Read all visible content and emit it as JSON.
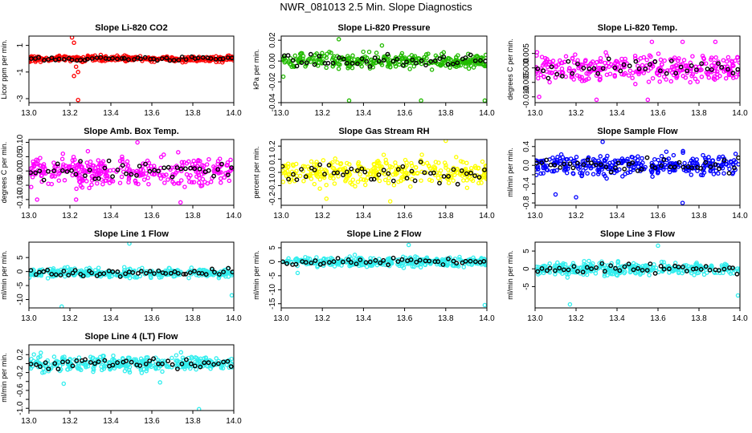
{
  "title": "NWR_081013  2.5 Min. Slope Diagnostics",
  "chart_data": [
    {
      "type": "scatter",
      "title": "Slope Li-820 CO2",
      "ylabel": "Licor ppm per min.",
      "xlim": [
        13.0,
        14.0
      ],
      "ylim": [
        -3.3,
        1.7
      ],
      "yticks": [
        -3,
        -1,
        1
      ],
      "ytick_labels": [
        "-3",
        "-1",
        "1"
      ],
      "xticks": [
        13.0,
        13.2,
        13.4,
        13.6,
        13.8,
        14.0
      ],
      "xtick_labels": [
        "13.0",
        "13.2",
        "13.4",
        "13.6",
        "13.8",
        "14.0"
      ],
      "color": "#ff0000",
      "reference_color": "#000000",
      "center": 0.0,
      "spread": 0.18,
      "outliers": [
        [
          13.21,
          1.6
        ],
        [
          13.22,
          1.2
        ],
        [
          13.23,
          -0.6
        ],
        [
          13.24,
          -1.0
        ],
        [
          13.22,
          -1.3
        ],
        [
          13.24,
          -3.1
        ]
      ],
      "n": 320,
      "n_ref": 50
    },
    {
      "type": "scatter",
      "title": "Slope Li-820 Pressure",
      "ylabel": "kPa per min.",
      "xlim": [
        13.0,
        14.0
      ],
      "ylim": [
        -0.04,
        0.024
      ],
      "yticks": [
        -0.04,
        -0.02,
        0.0,
        0.02
      ],
      "ytick_labels": [
        "-0.04",
        "-0.02",
        "0.00",
        "0.02"
      ],
      "xticks": [
        13.0,
        13.2,
        13.4,
        13.6,
        13.8,
        14.0
      ],
      "xtick_labels": [
        "13.0",
        "13.2",
        "13.4",
        "13.6",
        "13.8",
        "14.0"
      ],
      "color": "#22bb00",
      "reference_color": "#000000",
      "center": 0.0,
      "spread": 0.006,
      "outliers": [
        [
          13.01,
          -0.015
        ],
        [
          13.33,
          -0.038
        ],
        [
          13.49,
          0.015
        ],
        [
          13.68,
          -0.038
        ],
        [
          13.99,
          -0.038
        ],
        [
          13.28,
          0.021
        ]
      ],
      "n": 320,
      "n_ref": 45
    },
    {
      "type": "scatter",
      "title": "Slope Li-820 Temp.",
      "ylabel": "degrees C per min.",
      "xlim": [
        13.0,
        14.0
      ],
      "ylim": [
        -0.012,
        0.011
      ],
      "yticks": [
        -0.01,
        -0.005,
        0.0,
        0.005
      ],
      "ytick_labels": [
        "-0.010",
        "-0.005",
        "0.000",
        "0.005"
      ],
      "xticks": [
        13.0,
        13.2,
        13.4,
        13.6,
        13.8,
        14.0
      ],
      "xtick_labels": [
        "13.0",
        "13.2",
        "13.4",
        "13.6",
        "13.8",
        "14.0"
      ],
      "color": "#ff00ff",
      "reference_color": "#000000",
      "center": 0.0,
      "spread": 0.004,
      "outliers": [
        [
          13.57,
          0.009
        ],
        [
          13.72,
          0.009
        ],
        [
          13.88,
          0.009
        ],
        [
          13.3,
          -0.011
        ],
        [
          13.55,
          -0.011
        ],
        [
          13.02,
          -0.01
        ]
      ],
      "n": 320,
      "n_ref": 40
    },
    {
      "type": "scatter",
      "title": "Slope Amb. Box Temp.",
      "ylabel": "degrees C per min.",
      "xlim": [
        13.0,
        14.0
      ],
      "ylim": [
        -0.12,
        0.11
      ],
      "yticks": [
        -0.1,
        -0.05,
        0.0,
        0.05,
        0.1
      ],
      "ytick_labels": [
        "-0.10",
        "-0.05",
        "0.00",
        "0.05",
        "0.10"
      ],
      "xticks": [
        13.0,
        13.2,
        13.4,
        13.6,
        13.8,
        14.0
      ],
      "xtick_labels": [
        "13.0",
        "13.2",
        "13.4",
        "13.6",
        "13.8",
        "14.0"
      ],
      "color": "#ff00ff",
      "reference_color": "#000000",
      "center": 0.0,
      "spread": 0.04,
      "outliers": [
        [
          13.53,
          0.1
        ],
        [
          13.74,
          -0.11
        ],
        [
          13.04,
          -0.1
        ],
        [
          13.23,
          -0.1
        ]
      ],
      "n": 330,
      "n_ref": 45
    },
    {
      "type": "scatter",
      "title": "Slope Gas Stream RH",
      "ylabel": "percent per min.",
      "xlim": [
        13.0,
        14.0
      ],
      "ylim": [
        -0.25,
        0.25
      ],
      "yticks": [
        -0.2,
        -0.1,
        0.0,
        0.1,
        0.2
      ],
      "ytick_labels": [
        "-0.2",
        "-0.1",
        "0.0",
        "0.1",
        "0.2"
      ],
      "xticks": [
        13.0,
        13.2,
        13.4,
        13.6,
        13.8,
        14.0
      ],
      "xtick_labels": [
        "13.0",
        "13.2",
        "13.4",
        "13.6",
        "13.8",
        "14.0"
      ],
      "color": "#ffff00",
      "reference_color": "#000000",
      "center": 0.0,
      "spread": 0.08,
      "outliers": [
        [
          13.8,
          0.24
        ],
        [
          13.22,
          -0.2
        ],
        [
          13.53,
          -0.22
        ]
      ],
      "n": 330,
      "n_ref": 45
    },
    {
      "type": "scatter",
      "title": "Slope Sample Flow",
      "ylabel": "ml/min per min.",
      "xlim": [
        13.0,
        14.0
      ],
      "ylim": [
        -0.85,
        0.55
      ],
      "yticks": [
        -0.8,
        -0.6,
        -0.4,
        -0.2,
        0.0,
        0.2,
        0.4
      ],
      "ytick_labels": [
        "-0.8",
        "",
        "-0.4",
        "",
        "0.0",
        "",
        "0.4"
      ],
      "xticks": [
        13.0,
        13.2,
        13.4,
        13.6,
        13.8,
        14.0
      ],
      "xtick_labels": [
        "13.0",
        "13.2",
        "13.4",
        "13.6",
        "13.8",
        "14.0"
      ],
      "color": "#0000ff",
      "reference_color": "#000000",
      "center": 0.0,
      "spread": 0.18,
      "outliers": [
        [
          13.33,
          0.5
        ],
        [
          13.72,
          -0.8
        ],
        [
          13.1,
          -0.62
        ],
        [
          13.2,
          -0.68
        ]
      ],
      "n": 330,
      "n_ref": 45
    },
    {
      "type": "scatter",
      "title": "Slope Line 1 Flow",
      "ylabel": "ml/min per min.",
      "xlim": [
        13.0,
        14.0
      ],
      "ylim": [
        -13,
        10.5
      ],
      "yticks": [
        -10,
        -5,
        0,
        5
      ],
      "ytick_labels": [
        "-10",
        "-5",
        "0",
        "5"
      ],
      "xticks": [
        13.0,
        13.2,
        13.4,
        13.6,
        13.8,
        14.0
      ],
      "xtick_labels": [
        "13.0",
        "13.2",
        "13.4",
        "13.6",
        "13.8",
        "14.0"
      ],
      "color": "#33eeee",
      "reference_color": "#000000",
      "center": -0.5,
      "spread": 1.4,
      "outliers": [
        [
          13.49,
          10
        ],
        [
          13.16,
          -12.5
        ],
        [
          13.99,
          -8.5
        ]
      ],
      "n": 330,
      "n_ref": 50
    },
    {
      "type": "scatter",
      "title": "Slope Line 2 Flow",
      "ylabel": "ml/min per min.",
      "xlim": [
        13.0,
        14.0
      ],
      "ylim": [
        -16.5,
        7
      ],
      "yticks": [
        -15,
        -10,
        -5,
        0,
        5
      ],
      "ytick_labels": [
        "-15",
        "-10",
        "-5",
        "0",
        "5"
      ],
      "xticks": [
        13.0,
        13.2,
        13.4,
        13.6,
        13.8,
        14.0
      ],
      "xtick_labels": [
        "13.0",
        "13.2",
        "13.4",
        "13.6",
        "13.8",
        "14.0"
      ],
      "color": "#33eeee",
      "reference_color": "#000000",
      "center": 0.0,
      "spread": 1.4,
      "outliers": [
        [
          13.62,
          6
        ],
        [
          13.99,
          -15.5
        ],
        [
          13.08,
          -4
        ]
      ],
      "n": 330,
      "n_ref": 45
    },
    {
      "type": "scatter",
      "title": "Slope Line 3 Flow",
      "ylabel": "ml/min per min.",
      "xlim": [
        13.0,
        14.0
      ],
      "ylim": [
        -11,
        7.5
      ],
      "yticks": [
        -5,
        0,
        5
      ],
      "ytick_labels": [
        "-5",
        "0",
        "5"
      ],
      "xticks": [
        13.0,
        13.2,
        13.4,
        13.6,
        13.8,
        14.0
      ],
      "xtick_labels": [
        "13.0",
        "13.2",
        "13.4",
        "13.6",
        "13.8",
        "14.0"
      ],
      "color": "#33eeee",
      "reference_color": "#000000",
      "center": 0.0,
      "spread": 1.5,
      "outliers": [
        [
          13.6,
          6.5
        ],
        [
          13.17,
          -10
        ],
        [
          13.99,
          -7.5
        ]
      ],
      "n": 330,
      "n_ref": 45
    },
    {
      "type": "scatter",
      "title": "Slope Line 4 (LT) Flow",
      "ylabel": "ml/min per min.",
      "xlim": [
        13.0,
        14.0
      ],
      "ylim": [
        -1.05,
        0.42
      ],
      "yticks": [
        -1.0,
        -0.8,
        -0.6,
        -0.4,
        -0.2,
        0.0,
        0.2
      ],
      "ytick_labels": [
        "-1.0",
        "",
        "-0.6",
        "",
        "-0.2",
        "",
        "0.2"
      ],
      "xticks": [
        13.0,
        13.2,
        13.4,
        13.6,
        13.8,
        14.0
      ],
      "xtick_labels": [
        "13.0",
        "13.2",
        "13.4",
        "13.6",
        "13.8",
        "14.0"
      ],
      "color": "#33eeee",
      "reference_color": "#000000",
      "center": 0.0,
      "spread": 0.14,
      "outliers": [
        [
          13.83,
          -1.02
        ],
        [
          13.17,
          -0.45
        ],
        [
          13.64,
          -0.42
        ]
      ],
      "n": 330,
      "n_ref": 45
    }
  ]
}
